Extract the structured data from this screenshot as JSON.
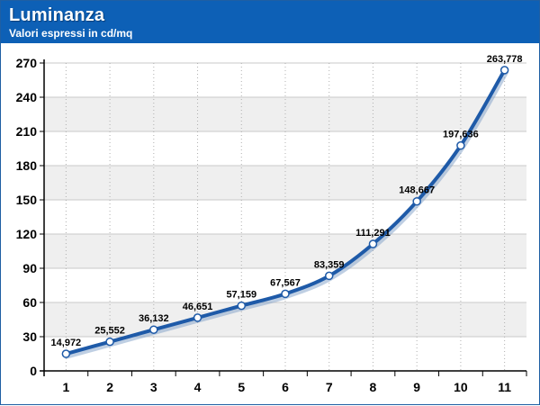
{
  "header": {
    "title": "Luminanza",
    "subtitle": "Valori espressi in cd/mq"
  },
  "colors": {
    "header_bg": "#0d60b6",
    "line": "#1e5aa8",
    "band": "#efefef",
    "marker_fill": "#ffffff"
  },
  "chart_data": {
    "type": "line",
    "title": "Luminanza",
    "subtitle": "Valori espressi in cd/mq",
    "xlabel": "",
    "ylabel": "",
    "x": [
      1,
      2,
      3,
      4,
      5,
      6,
      7,
      8,
      9,
      10,
      11
    ],
    "x_tick_labels": [
      "1",
      "2",
      "3",
      "4",
      "5",
      "6",
      "7",
      "8",
      "9",
      "10",
      "11"
    ],
    "values": [
      14.972,
      25.552,
      36.132,
      46.651,
      57.159,
      67.567,
      83.359,
      111.291,
      148.667,
      197.636,
      263.778
    ],
    "data_labels": [
      "14,972",
      "25,552",
      "36,132",
      "46,651",
      "57,159",
      "67,567",
      "83,359",
      "111,291",
      "148,667",
      "197,636",
      "263,778"
    ],
    "ylim": [
      0,
      270
    ],
    "y_ticks": [
      0,
      30,
      60,
      90,
      120,
      150,
      180,
      210,
      240,
      270
    ],
    "y_tick_labels": [
      "0",
      "30",
      "60",
      "90",
      "120",
      "150",
      "180",
      "210",
      "240",
      "270"
    ],
    "grid": true,
    "legend": "none"
  }
}
